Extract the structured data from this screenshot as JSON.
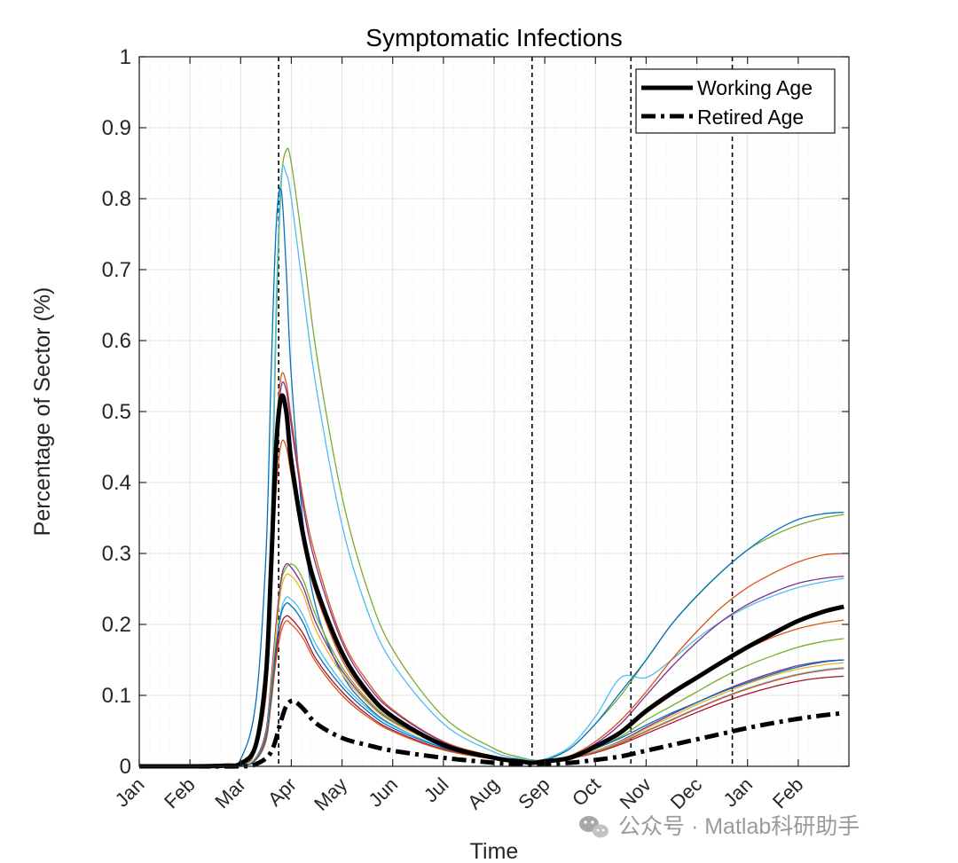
{
  "chart_data": {
    "type": "line",
    "title": "Symptomatic Infections",
    "xlabel": "Time",
    "ylabel": "Percentage of Sector (%)",
    "xlim": [
      0,
      14
    ],
    "ylim": [
      0,
      1
    ],
    "x_tick_values": [
      0,
      1,
      2,
      3,
      4,
      5,
      6,
      7,
      8,
      9,
      10,
      11,
      12,
      13
    ],
    "x_tick_labels": [
      "Jan",
      "Feb",
      "Mar",
      "Apr",
      "May",
      "Jun",
      "Jul",
      "Aug",
      "Sep",
      "Oct",
      "Nov",
      "Dec",
      "Jan",
      "Feb"
    ],
    "y_ticks": [
      0,
      0.1,
      0.2,
      0.3,
      0.4,
      0.5,
      0.6,
      0.7,
      0.8,
      0.9,
      1
    ],
    "y_tick_labels": [
      "0",
      "0.1",
      "0.2",
      "0.3",
      "0.4",
      "0.5",
      "0.6",
      "0.7",
      "0.8",
      "0.9",
      "1"
    ],
    "grid": "minor",
    "vertical_markers_x": [
      2.75,
      7.75,
      9.7,
      11.7
    ],
    "legend": {
      "position": "top-right",
      "entries": [
        {
          "label": "Working Age",
          "style": "solid"
        },
        {
          "label": "Retired Age",
          "style": "dash-dot"
        }
      ]
    },
    "series": [
      {
        "name": "Working Age",
        "color": "#000000",
        "style": "solid",
        "width": 5,
        "x": [
          0,
          1,
          1.7,
          2,
          2.3,
          2.5,
          2.6,
          2.7,
          2.8,
          2.9,
          3,
          3.25,
          3.5,
          4,
          4.5,
          5,
          6,
          7,
          7.5,
          7.75,
          8,
          8.5,
          9,
          9.5,
          10,
          10.5,
          11,
          11.5,
          12,
          12.5,
          13,
          13.5,
          13.9
        ],
        "y": [
          0,
          0,
          0.001,
          0.004,
          0.03,
          0.13,
          0.28,
          0.45,
          0.52,
          0.5,
          0.43,
          0.32,
          0.25,
          0.16,
          0.105,
          0.07,
          0.03,
          0.012,
          0.007,
          0.005,
          0.007,
          0.012,
          0.028,
          0.048,
          0.078,
          0.103,
          0.125,
          0.147,
          0.168,
          0.187,
          0.205,
          0.218,
          0.225
        ]
      },
      {
        "name": "Retired Age",
        "color": "#000000",
        "style": "dash-dot",
        "width": 5,
        "x": [
          0,
          1,
          2,
          2.3,
          2.6,
          2.8,
          2.9,
          3,
          3.1,
          3.25,
          3.5,
          4,
          4.5,
          5,
          6,
          7,
          7.5,
          7.75,
          8,
          8.5,
          9,
          9.5,
          10,
          10.5,
          11,
          11.5,
          12,
          12.5,
          13,
          13.5,
          13.9
        ],
        "y": [
          0,
          0,
          0,
          0.003,
          0.02,
          0.065,
          0.085,
          0.092,
          0.09,
          0.08,
          0.06,
          0.04,
          0.03,
          0.022,
          0.012,
          0.005,
          0.003,
          0.002,
          0.003,
          0.005,
          0.009,
          0.014,
          0.022,
          0.03,
          0.038,
          0.046,
          0.054,
          0.061,
          0.067,
          0.072,
          0.075
        ]
      },
      {
        "name": "sector-green-high",
        "color": "#77AC30",
        "style": "solid",
        "width": 1.3,
        "x": [
          0,
          1,
          2,
          2.3,
          2.5,
          2.6,
          2.7,
          2.8,
          2.9,
          3,
          3.25,
          3.5,
          4,
          4.5,
          5,
          6,
          7,
          7.5,
          7.75,
          8,
          8.5,
          9,
          9.5,
          10,
          10.5,
          11,
          11.5,
          12,
          12.5,
          13,
          13.5,
          13.9
        ],
        "y": [
          0,
          0,
          0.002,
          0.025,
          0.12,
          0.3,
          0.62,
          0.82,
          0.868,
          0.85,
          0.72,
          0.58,
          0.38,
          0.25,
          0.165,
          0.07,
          0.025,
          0.013,
          0.009,
          0.01,
          0.025,
          0.06,
          0.1,
          0.15,
          0.2,
          0.24,
          0.275,
          0.305,
          0.325,
          0.34,
          0.35,
          0.355
        ]
      },
      {
        "name": "sector-cyan-high",
        "color": "#4DBEEE",
        "style": "solid",
        "width": 1.3,
        "x": [
          0,
          1,
          2,
          2.3,
          2.5,
          2.6,
          2.7,
          2.8,
          2.9,
          3,
          3.25,
          3.5,
          4,
          4.5,
          5,
          6,
          7,
          7.5,
          7.75,
          8,
          8.5,
          9,
          9.5,
          10,
          10.5,
          11,
          11.5,
          12,
          12.5,
          13,
          13.5,
          13.9
        ],
        "y": [
          0,
          0,
          0.002,
          0.03,
          0.14,
          0.33,
          0.65,
          0.83,
          0.835,
          0.8,
          0.66,
          0.53,
          0.34,
          0.22,
          0.145,
          0.06,
          0.02,
          0.011,
          0.008,
          0.01,
          0.028,
          0.07,
          0.125,
          0.125,
          0.15,
          0.18,
          0.205,
          0.225,
          0.24,
          0.252,
          0.26,
          0.265
        ]
      },
      {
        "name": "sector-blue-high",
        "color": "#0072BD",
        "style": "solid",
        "width": 1.3,
        "x": [
          0,
          1,
          1.7,
          2,
          2.3,
          2.5,
          2.6,
          2.7,
          2.8,
          2.9,
          3,
          3.25,
          3.5,
          4,
          4.5,
          5,
          6,
          7,
          7.5,
          7.75,
          8,
          8.5,
          9,
          9.5,
          10,
          10.5,
          11,
          11.5,
          12,
          12.5,
          13,
          13.5,
          13.9
        ],
        "y": [
          0,
          0,
          0.001,
          0.01,
          0.09,
          0.3,
          0.55,
          0.76,
          0.812,
          0.7,
          0.55,
          0.33,
          0.22,
          0.13,
          0.085,
          0.058,
          0.026,
          0.01,
          0.006,
          0.005,
          0.008,
          0.025,
          0.06,
          0.105,
          0.15,
          0.2,
          0.24,
          0.275,
          0.305,
          0.33,
          0.348,
          0.356,
          0.358
        ]
      },
      {
        "name": "sector-orange-a",
        "color": "#D95319",
        "style": "solid",
        "width": 1.3,
        "x": [
          0,
          1,
          2,
          2.3,
          2.5,
          2.6,
          2.7,
          2.8,
          2.9,
          3,
          3.25,
          3.5,
          4,
          4.5,
          5,
          6,
          7,
          7.5,
          7.75,
          8,
          8.5,
          9,
          9.5,
          10,
          10.5,
          11,
          11.5,
          12,
          12.5,
          13,
          13.5,
          13.9
        ],
        "y": [
          0,
          0,
          0.002,
          0.03,
          0.13,
          0.3,
          0.47,
          0.55,
          0.54,
          0.49,
          0.37,
          0.29,
          0.18,
          0.12,
          0.08,
          0.035,
          0.014,
          0.008,
          0.006,
          0.008,
          0.015,
          0.035,
          0.065,
          0.105,
          0.15,
          0.19,
          0.225,
          0.252,
          0.272,
          0.288,
          0.298,
          0.3
        ]
      },
      {
        "name": "sector-purple-a",
        "color": "#7E2F8E",
        "style": "solid",
        "width": 1.3,
        "x": [
          0,
          1,
          2,
          2.3,
          2.5,
          2.6,
          2.7,
          2.8,
          2.9,
          3,
          3.25,
          3.5,
          4,
          4.5,
          5,
          6,
          7,
          7.5,
          7.75,
          8,
          8.5,
          9,
          9.5,
          10,
          10.5,
          11,
          11.5,
          12,
          12.5,
          13,
          13.5,
          13.9
        ],
        "y": [
          0,
          0,
          0.002,
          0.03,
          0.12,
          0.28,
          0.45,
          0.535,
          0.53,
          0.48,
          0.36,
          0.28,
          0.175,
          0.115,
          0.078,
          0.034,
          0.013,
          0.007,
          0.005,
          0.007,
          0.014,
          0.032,
          0.06,
          0.1,
          0.14,
          0.175,
          0.205,
          0.228,
          0.245,
          0.258,
          0.265,
          0.268
        ]
      },
      {
        "name": "sector-orange-b",
        "color": "#D95319",
        "style": "solid",
        "width": 1.3,
        "x": [
          0,
          1,
          2,
          2.3,
          2.5,
          2.6,
          2.7,
          2.8,
          2.9,
          3,
          3.25,
          3.5,
          4,
          4.5,
          5,
          6,
          7,
          7.5,
          7.75,
          8,
          8.5,
          9,
          9.5,
          10,
          10.5,
          11,
          11.5,
          12,
          12.5,
          13,
          13.5,
          13.9
        ],
        "y": [
          0,
          0,
          0.002,
          0.025,
          0.1,
          0.24,
          0.39,
          0.455,
          0.45,
          0.41,
          0.31,
          0.24,
          0.15,
          0.1,
          0.068,
          0.03,
          0.012,
          0.007,
          0.005,
          0.007,
          0.012,
          0.026,
          0.048,
          0.075,
          0.1,
          0.125,
          0.148,
          0.166,
          0.182,
          0.194,
          0.202,
          0.206
        ]
      },
      {
        "name": "sector-olive-a",
        "color": "#77AC30",
        "style": "solid",
        "width": 1.3,
        "x": [
          0,
          1,
          2,
          2.3,
          2.5,
          2.6,
          2.7,
          2.8,
          2.9,
          3,
          3.1,
          3.25,
          3.5,
          4,
          4.5,
          5,
          6,
          7,
          7.5,
          7.75,
          8,
          8.5,
          9,
          9.5,
          10,
          10.5,
          11,
          11.5,
          12,
          12.5,
          13,
          13.5,
          13.9
        ],
        "y": [
          0,
          0,
          0.001,
          0.012,
          0.05,
          0.12,
          0.2,
          0.26,
          0.28,
          0.285,
          0.28,
          0.26,
          0.21,
          0.14,
          0.095,
          0.065,
          0.03,
          0.012,
          0.007,
          0.005,
          0.007,
          0.013,
          0.025,
          0.042,
          0.065,
          0.085,
          0.105,
          0.125,
          0.142,
          0.156,
          0.168,
          0.176,
          0.18
        ]
      },
      {
        "name": "sector-purple-b",
        "color": "#7E2F8E",
        "style": "solid",
        "width": 1.3,
        "x": [
          0,
          1,
          2,
          2.3,
          2.5,
          2.6,
          2.7,
          2.8,
          2.9,
          3,
          3.1,
          3.25,
          3.5,
          4,
          4.5,
          5,
          6,
          7,
          7.5,
          7.75,
          8,
          8.5,
          9,
          9.5,
          10,
          10.5,
          11,
          11.5,
          12,
          12.5,
          13,
          13.5,
          13.9
        ],
        "y": [
          0,
          0,
          0.001,
          0.012,
          0.05,
          0.12,
          0.2,
          0.265,
          0.285,
          0.28,
          0.27,
          0.25,
          0.2,
          0.135,
          0.092,
          0.063,
          0.03,
          0.012,
          0.007,
          0.005,
          0.007,
          0.012,
          0.022,
          0.036,
          0.055,
          0.073,
          0.09,
          0.106,
          0.12,
          0.132,
          0.142,
          0.148,
          0.15
        ]
      },
      {
        "name": "sector-yellow-a",
        "color": "#EDB120",
        "style": "solid",
        "width": 1.3,
        "x": [
          0,
          1,
          2,
          2.3,
          2.5,
          2.6,
          2.7,
          2.8,
          2.9,
          3,
          3.1,
          3.25,
          3.5,
          4,
          4.5,
          5,
          6,
          7,
          7.5,
          7.75,
          8,
          8.5,
          9,
          9.5,
          10,
          10.5,
          11,
          11.5,
          12,
          12.5,
          13,
          13.5,
          13.9
        ],
        "y": [
          0,
          0,
          0.001,
          0.011,
          0.045,
          0.11,
          0.19,
          0.25,
          0.27,
          0.268,
          0.26,
          0.24,
          0.19,
          0.13,
          0.09,
          0.062,
          0.029,
          0.012,
          0.007,
          0.005,
          0.007,
          0.012,
          0.022,
          0.035,
          0.053,
          0.07,
          0.087,
          0.102,
          0.116,
          0.128,
          0.137,
          0.143,
          0.146
        ]
      },
      {
        "name": "sector-cyan-b",
        "color": "#4DBEEE",
        "style": "solid",
        "width": 1.3,
        "x": [
          0,
          1,
          2,
          2.3,
          2.5,
          2.6,
          2.7,
          2.8,
          2.9,
          3,
          3.1,
          3.25,
          3.5,
          4,
          4.5,
          5,
          6,
          7,
          7.5,
          7.75,
          8,
          8.5,
          9,
          9.5,
          10,
          10.5,
          11,
          11.5,
          12,
          12.5,
          13,
          13.5,
          13.9
        ],
        "y": [
          0,
          0,
          0.001,
          0.01,
          0.04,
          0.1,
          0.17,
          0.22,
          0.238,
          0.235,
          0.228,
          0.21,
          0.17,
          0.118,
          0.082,
          0.057,
          0.027,
          0.011,
          0.007,
          0.005,
          0.007,
          0.012,
          0.021,
          0.034,
          0.05,
          0.066,
          0.082,
          0.097,
          0.11,
          0.121,
          0.13,
          0.136,
          0.139
        ]
      },
      {
        "name": "sector-red-a",
        "color": "#A2142F",
        "style": "solid",
        "width": 1.3,
        "x": [
          0,
          1,
          2,
          2.3,
          2.5,
          2.6,
          2.7,
          2.8,
          2.9,
          3,
          3.1,
          3.25,
          3.5,
          4,
          4.5,
          5,
          6,
          7,
          7.5,
          7.75,
          8,
          8.5,
          9,
          9.5,
          10,
          10.5,
          11,
          11.5,
          12,
          12.5,
          13,
          13.5,
          13.9
        ],
        "y": [
          0,
          0,
          0.001,
          0.01,
          0.04,
          0.095,
          0.16,
          0.2,
          0.212,
          0.208,
          0.2,
          0.185,
          0.15,
          0.105,
          0.073,
          0.051,
          0.024,
          0.01,
          0.006,
          0.005,
          0.006,
          0.011,
          0.019,
          0.031,
          0.046,
          0.061,
          0.076,
          0.09,
          0.102,
          0.112,
          0.12,
          0.125,
          0.127
        ]
      },
      {
        "name": "sector-orange-c",
        "color": "#D95319",
        "style": "solid",
        "width": 1.3,
        "x": [
          0,
          1,
          2,
          2.3,
          2.5,
          2.6,
          2.7,
          2.8,
          2.9,
          3,
          3.1,
          3.25,
          3.5,
          4,
          4.5,
          5,
          6,
          7,
          7.5,
          7.75,
          8,
          8.5,
          9,
          9.5,
          10,
          10.5,
          11,
          11.5,
          12,
          12.5,
          13,
          13.5,
          13.9
        ],
        "y": [
          0,
          0,
          0.001,
          0.009,
          0.036,
          0.088,
          0.15,
          0.19,
          0.205,
          0.2,
          0.193,
          0.178,
          0.145,
          0.1,
          0.07,
          0.049,
          0.023,
          0.01,
          0.006,
          0.005,
          0.006,
          0.011,
          0.02,
          0.033,
          0.049,
          0.065,
          0.081,
          0.096,
          0.109,
          0.12,
          0.129,
          0.135,
          0.138
        ]
      },
      {
        "name": "sector-blue-b",
        "color": "#0072BD",
        "style": "solid",
        "width": 1.3,
        "x": [
          0,
          1,
          2,
          2.3,
          2.5,
          2.6,
          2.7,
          2.8,
          2.9,
          3,
          3.1,
          3.25,
          3.5,
          4,
          4.5,
          5,
          6,
          7,
          7.5,
          7.75,
          8,
          8.5,
          9,
          9.5,
          10,
          10.5,
          11,
          11.5,
          12,
          12.5,
          13,
          13.5,
          13.9
        ],
        "y": [
          0,
          0,
          0.001,
          0.01,
          0.042,
          0.1,
          0.17,
          0.215,
          0.23,
          0.226,
          0.218,
          0.2,
          0.16,
          0.112,
          0.078,
          0.054,
          0.026,
          0.011,
          0.006,
          0.005,
          0.007,
          0.013,
          0.025,
          0.04,
          0.058,
          0.075,
          0.09,
          0.105,
          0.118,
          0.13,
          0.14,
          0.147,
          0.15
        ]
      }
    ]
  },
  "watermark": {
    "icon": "wechat-icon",
    "text": "公众号 · Matlab科研助手"
  }
}
